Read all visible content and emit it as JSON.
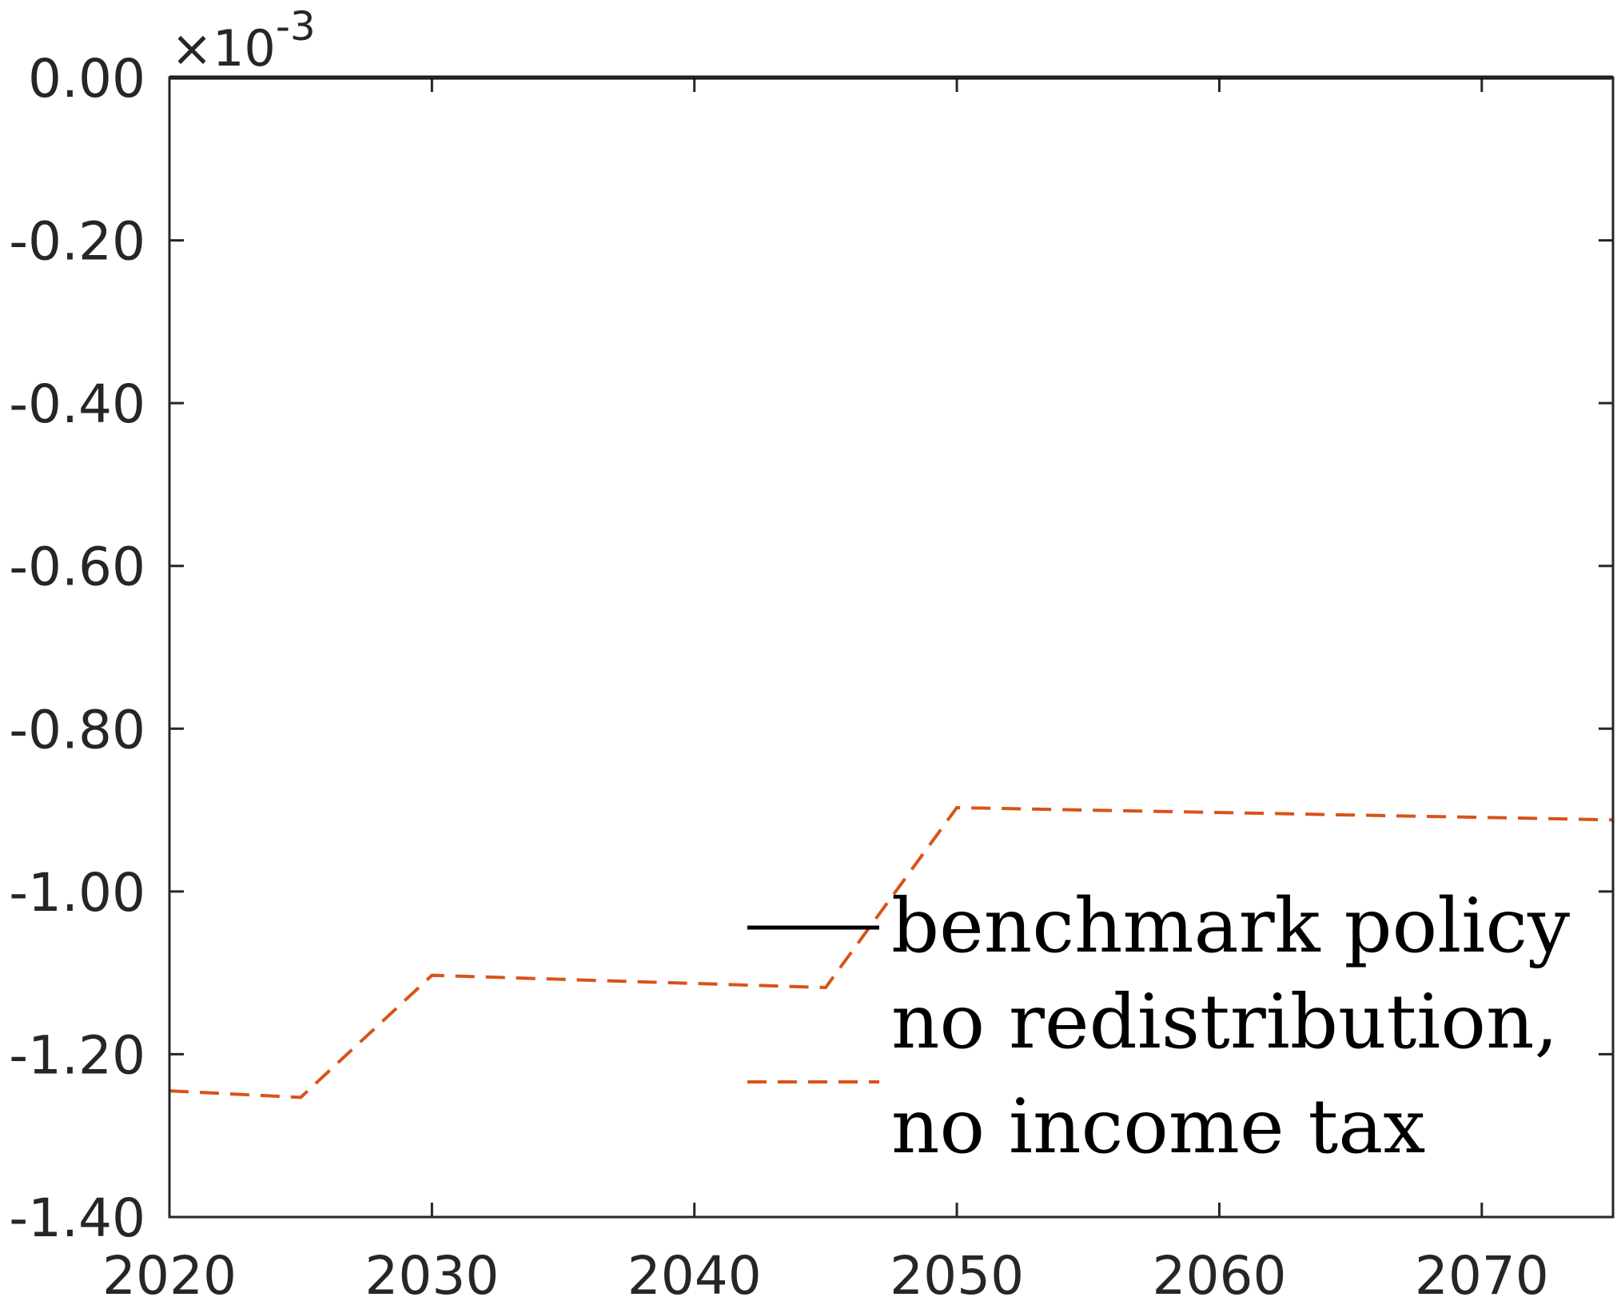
{
  "chart_data": {
    "type": "line",
    "x": [
      2020,
      2025,
      2030,
      2035,
      2040,
      2045,
      2050,
      2055,
      2060,
      2065,
      2070,
      2075
    ],
    "series": [
      {
        "name": "benchmark policy",
        "color": "#000000",
        "dash": "solid",
        "values": [
          0,
          0,
          0,
          0,
          0,
          0,
          0,
          0,
          0,
          0,
          0,
          0
        ]
      },
      {
        "name": "no redistribution, no income tax",
        "name_lines": [
          "no redistribution,",
          "no income tax"
        ],
        "color": "#D95319",
        "dash": "dashed",
        "values": [
          -1.245,
          -1.253,
          -1.103,
          -1.108,
          -1.113,
          -1.118,
          -0.897,
          -0.9,
          -0.903,
          -0.906,
          -0.909,
          -0.912
        ]
      }
    ],
    "xlim": [
      2020,
      2075
    ],
    "ylim": [
      -1.4,
      0
    ],
    "x_ticks": [
      2020,
      2030,
      2040,
      2050,
      2060,
      2070
    ],
    "x_tick_labels": [
      "2020",
      "2030",
      "2040",
      "2050",
      "2060",
      "2070"
    ],
    "y_ticks": [
      0,
      -0.2,
      -0.4,
      -0.6,
      -0.8,
      -1.0,
      -1.2,
      -1.4
    ],
    "y_tick_labels": [
      "0.00",
      "-0.20",
      "-0.40",
      "-0.60",
      "-0.80",
      "-1.00",
      "-1.20",
      "-1.40"
    ],
    "y_exponent": {
      "times": "×10",
      "power": "-3"
    },
    "title": "",
    "xlabel": "",
    "ylabel": "",
    "grid": false,
    "legend_position": "bottom-right"
  }
}
